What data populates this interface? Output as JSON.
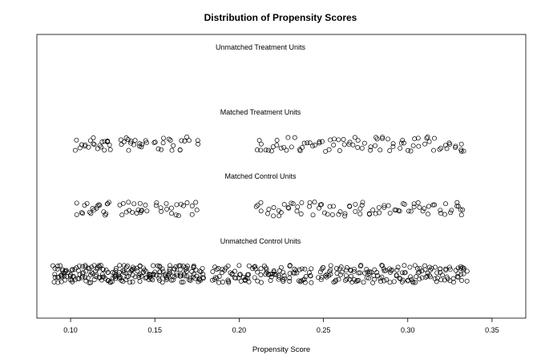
{
  "chart_data": {
    "type": "scatter",
    "title": "Distribution of Propensity Scores",
    "xlabel": "Propensity Score",
    "ylabel": "",
    "xlim": [
      0.08,
      0.37
    ],
    "xticks": [
      0.1,
      0.15,
      0.2,
      0.25,
      0.3,
      0.35
    ],
    "xtick_labels": [
      "0.10",
      "0.15",
      "0.20",
      "0.25",
      "0.30",
      "0.35"
    ],
    "grid": false,
    "marker": "open-circle",
    "series": [
      {
        "name": "Unmatched Treatment Units",
        "x": []
      },
      {
        "name": "Matched Treatment Units",
        "x": [
          0.104,
          0.106,
          0.108,
          0.111,
          0.113,
          0.115,
          0.117,
          0.119,
          0.121,
          0.122,
          0.123,
          0.13,
          0.132,
          0.134,
          0.136,
          0.138,
          0.14,
          0.142,
          0.144,
          0.15,
          0.153,
          0.156,
          0.158,
          0.161,
          0.164,
          0.167,
          0.17,
          0.175,
          0.211,
          0.214,
          0.217,
          0.22,
          0.223,
          0.226,
          0.229,
          0.232,
          0.235,
          0.238,
          0.241,
          0.244,
          0.247,
          0.25,
          0.253,
          0.256,
          0.259,
          0.262,
          0.265,
          0.268,
          0.271,
          0.274,
          0.277,
          0.28,
          0.283,
          0.286,
          0.289,
          0.292,
          0.295,
          0.298,
          0.301,
          0.304,
          0.307,
          0.31,
          0.313,
          0.316,
          0.319,
          0.322,
          0.325,
          0.328,
          0.331,
          0.332
        ]
      },
      {
        "name": "Matched Control Units",
        "x": [
          0.104,
          0.106,
          0.109,
          0.111,
          0.113,
          0.115,
          0.117,
          0.12,
          0.121,
          0.123,
          0.13,
          0.132,
          0.134,
          0.137,
          0.139,
          0.141,
          0.143,
          0.145,
          0.15,
          0.153,
          0.156,
          0.159,
          0.162,
          0.165,
          0.168,
          0.171,
          0.175,
          0.211,
          0.214,
          0.217,
          0.22,
          0.223,
          0.226,
          0.229,
          0.232,
          0.235,
          0.238,
          0.241,
          0.244,
          0.247,
          0.25,
          0.253,
          0.256,
          0.259,
          0.262,
          0.265,
          0.268,
          0.271,
          0.274,
          0.277,
          0.28,
          0.283,
          0.286,
          0.289,
          0.292,
          0.295,
          0.298,
          0.301,
          0.304,
          0.307,
          0.31,
          0.313,
          0.316,
          0.319,
          0.322,
          0.325,
          0.328,
          0.331,
          0.332
        ]
      },
      {
        "name": "Unmatched Control Units",
        "x": [
          0.09,
          0.092,
          0.094,
          0.096,
          0.098,
          0.1,
          0.102,
          0.104,
          0.106,
          0.108,
          0.11,
          0.112,
          0.114,
          0.116,
          0.118,
          0.12,
          0.122,
          0.124,
          0.126,
          0.128,
          0.13,
          0.132,
          0.134,
          0.136,
          0.138,
          0.14,
          0.142,
          0.144,
          0.146,
          0.148,
          0.15,
          0.152,
          0.154,
          0.156,
          0.158,
          0.16,
          0.162,
          0.164,
          0.166,
          0.168,
          0.17,
          0.172,
          0.174,
          0.176,
          0.178,
          0.185,
          0.188,
          0.191,
          0.194,
          0.197,
          0.2,
          0.203,
          0.206,
          0.209,
          0.212,
          0.215,
          0.218,
          0.221,
          0.224,
          0.227,
          0.23,
          0.233,
          0.236,
          0.239,
          0.242,
          0.248,
          0.251,
          0.254,
          0.257,
          0.26,
          0.263,
          0.266,
          0.269,
          0.272,
          0.275,
          0.278,
          0.281,
          0.284,
          0.287,
          0.29,
          0.293,
          0.296,
          0.299,
          0.302,
          0.305,
          0.308,
          0.311,
          0.314,
          0.317,
          0.32,
          0.323,
          0.326,
          0.329,
          0.332,
          0.334
        ]
      }
    ]
  }
}
